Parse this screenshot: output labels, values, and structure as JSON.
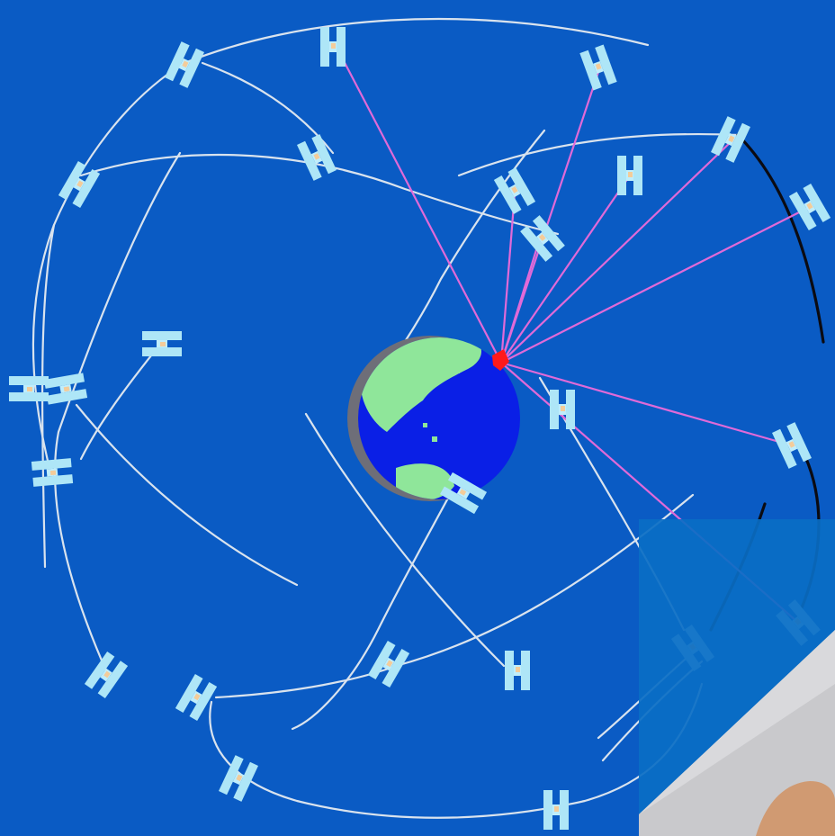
{
  "scene": {
    "colors": {
      "background": "#0a5bc4",
      "ocean": "#0a1fe6",
      "land": "#8fe69a",
      "earth_shadow": "#6e6e78",
      "orbit": "#d9e3ee",
      "signal_line": "#e06ad8",
      "receiver": "#ff1a1a",
      "satellite": "#aee6f7"
    },
    "icons": [
      "earth-globe",
      "satellite-icon",
      "receiver-marker",
      "finger-tip"
    ]
  }
}
